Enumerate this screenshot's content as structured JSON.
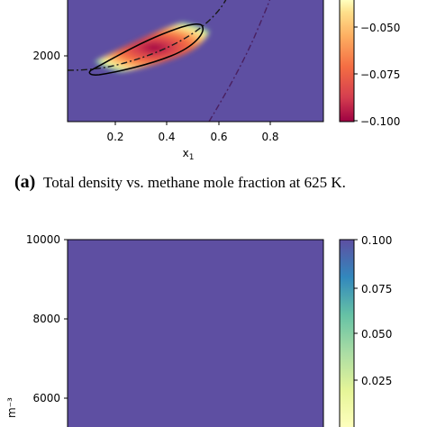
{
  "caption": {
    "tag": "(a)",
    "text": "Total density vs. methane mole fraction at 625 K."
  },
  "colors": {
    "background_plot": "#5e4fa2",
    "spectral": [
      "#9e0142",
      "#d53e4f",
      "#f46d43",
      "#fdae61",
      "#fee08b",
      "#ffffbf",
      "#e6f598",
      "#abdda4",
      "#66c2a5",
      "#3288bd",
      "#5e4fa2"
    ]
  },
  "chart_data": [
    {
      "type": "heatmap",
      "colormap": "Spectral",
      "xlabel": "x",
      "xlabel_sub": "1",
      "ylabel": "",
      "xlim": [
        0.0,
        1.0
      ],
      "ylim": [
        1000,
        2600
      ],
      "x_ticks": [
        0.2,
        0.4,
        0.6,
        0.8
      ],
      "x_tick_labels": [
        "0.2",
        "0.4",
        "0.6",
        "0.8"
      ],
      "y_ticks": [
        2000
      ],
      "y_tick_labels": [
        "2000"
      ],
      "colorbar": {
        "range": [
          -0.1,
          -0.025
        ],
        "ticks": [
          -0.05,
          -0.075,
          -0.1
        ],
        "tick_labels": [
          "−0.050",
          "−0.075",
          "−0.100"
        ]
      },
      "features": {
        "instability_region_boundary": [
          [
            0.09,
            1655
          ],
          [
            0.2,
            1755
          ],
          [
            0.3,
            1880
          ],
          [
            0.4,
            2050
          ],
          [
            0.47,
            2230
          ],
          [
            0.5,
            2440
          ],
          [
            0.44,
            2440
          ],
          [
            0.3,
            2230
          ],
          [
            0.18,
            1950
          ],
          [
            0.09,
            1655
          ]
        ],
        "curve_a": [
          [
            0.0,
            1640
          ],
          [
            0.1,
            1650
          ],
          [
            0.2,
            1740
          ],
          [
            0.3,
            1880
          ],
          [
            0.4,
            2050
          ],
          [
            0.5,
            2280
          ],
          [
            0.57,
            2520
          ],
          [
            0.6,
            2600
          ]
        ],
        "curve_b": [
          [
            0.55,
            1000
          ],
          [
            0.6,
            1270
          ],
          [
            0.68,
            1690
          ],
          [
            0.75,
            2120
          ],
          [
            0.79,
            2420
          ],
          [
            0.82,
            2600
          ]
        ]
      }
    },
    {
      "type": "heatmap",
      "colormap": "Spectral",
      "xlabel": "",
      "ylabel": "m⁻³",
      "xlim": [
        0.0,
        1.0
      ],
      "ylim": [
        5300,
        10000
      ],
      "y_ticks": [
        6000,
        8000,
        10000
      ],
      "y_tick_labels": [
        "6000",
        "8000",
        "10000"
      ],
      "uniform_value": 0.1,
      "colorbar": {
        "range": [
          0.0,
          0.1
        ],
        "ticks": [
          0.1,
          0.075,
          0.05,
          0.025
        ],
        "tick_labels": [
          "0.100",
          "0.075",
          "0.050",
          "0.025"
        ]
      }
    }
  ]
}
